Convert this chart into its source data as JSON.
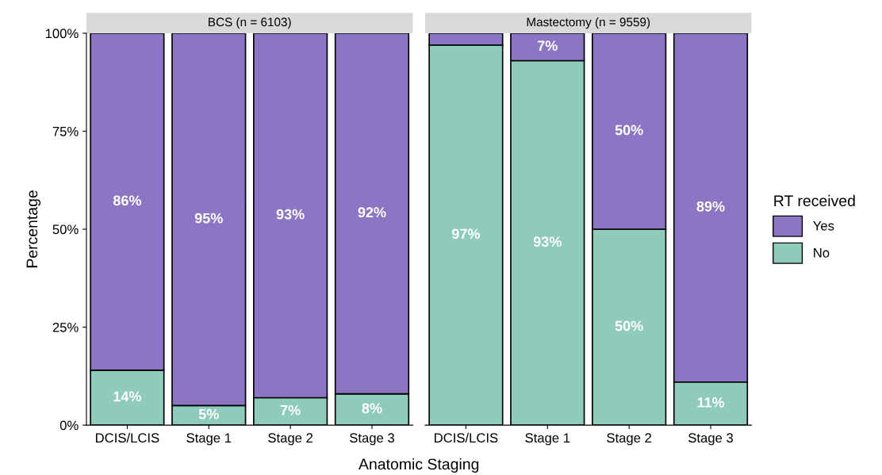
{
  "chart_data": [
    {
      "type": "bar",
      "stacked": true,
      "title": "BCS (n = 6103)",
      "xlabel": "Anatomic Staging",
      "ylabel": "Percentage",
      "categories": [
        "DCIS/LCIS",
        "Stage 1",
        "Stage 2",
        "Stage 3"
      ],
      "ylim": [
        0,
        100
      ],
      "yticks": [
        {
          "value": 0,
          "label": "0%"
        },
        {
          "value": 25,
          "label": "25%"
        },
        {
          "value": 50,
          "label": "50%"
        },
        {
          "value": 75,
          "label": "75%"
        },
        {
          "value": 100,
          "label": "100%"
        }
      ],
      "grid": false,
      "legend": false,
      "series": [
        {
          "color": "#8fcbbb",
          "values": [
            14,
            5,
            7,
            8
          ],
          "value_labels": [
            "14%",
            "5%",
            "7%",
            "8%"
          ]
        },
        {
          "color": "#8c76c4",
          "values": [
            86,
            95,
            93,
            92
          ],
          "value_labels": [
            "86%",
            "95%",
            "93%",
            "92%"
          ]
        }
      ]
    },
    {
      "type": "bar",
      "stacked": true,
      "title": "Mastectomy (n = 9559)",
      "categories": [
        "DCIS/LCIS",
        "Stage 1",
        "Stage 2",
        "Stage 3"
      ],
      "ylim": [
        0,
        100
      ],
      "tick_labels": "x",
      "grid": false,
      "legend": "right",
      "legend_title": "RT received",
      "series": [
        {
          "name": "No",
          "color": "#8fcbbb",
          "values": [
            97,
            93,
            50,
            11
          ],
          "value_labels": [
            "97%",
            "93%",
            "50%",
            "11%"
          ]
        },
        {
          "name": "Yes",
          "color": "#8c76c4",
          "values": [
            3,
            7,
            50,
            89
          ],
          "value_labels": [
            null,
            "7%",
            "50%",
            "89%"
          ]
        }
      ]
    }
  ]
}
